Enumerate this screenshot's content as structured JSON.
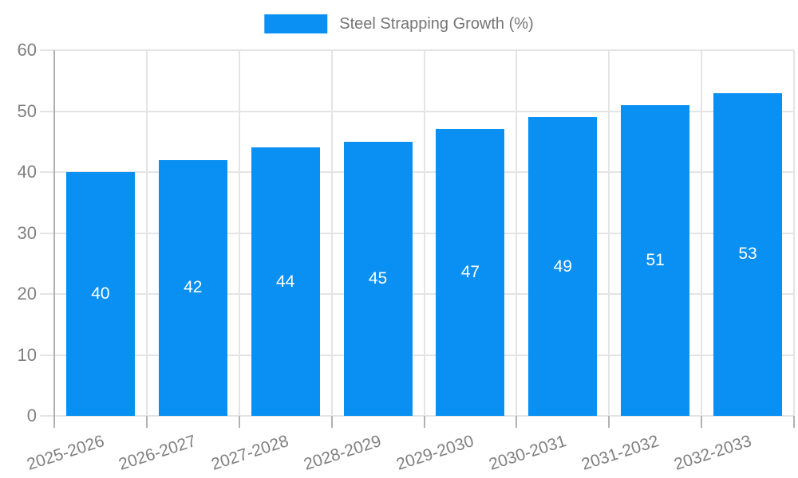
{
  "legend": {
    "label": "Steel Strapping Growth (%)"
  },
  "colors": {
    "background": "#ffffff",
    "bar": "#0a90f2",
    "grid": "#e4e4e4",
    "axis": "#b1b1b1",
    "tick_label": "#808080",
    "legend_text": "#757575",
    "value_label": "#ffffff"
  },
  "chart_data": {
    "type": "bar",
    "title": "Steel Strapping Growth (%)",
    "categories": [
      "2025-2026",
      "2026-2027",
      "2027-2028",
      "2028-2029",
      "2029-2030",
      "2030-2031",
      "2031-2032",
      "2032-2033"
    ],
    "values": [
      40,
      42,
      44,
      45,
      47,
      49,
      51,
      53
    ],
    "value_labels_shown": true,
    "value_label_position": "inside-center",
    "xlabel": "",
    "ylabel": "",
    "ylim": [
      0,
      60
    ],
    "yticks": [
      0,
      10,
      20,
      30,
      40,
      50,
      60
    ],
    "grid": true,
    "legend_position": "top-center",
    "x_tick_label_rotation_deg": -18
  }
}
